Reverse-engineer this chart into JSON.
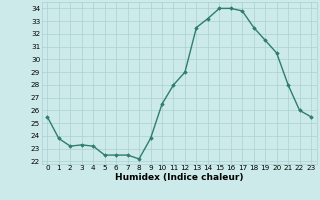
{
  "x": [
    0,
    1,
    2,
    3,
    4,
    5,
    6,
    7,
    8,
    9,
    10,
    11,
    12,
    13,
    14,
    15,
    16,
    17,
    18,
    19,
    20,
    21,
    22,
    23
  ],
  "y": [
    25.5,
    23.8,
    23.2,
    23.3,
    23.2,
    22.5,
    22.5,
    22.5,
    22.2,
    23.8,
    26.5,
    28.0,
    29.0,
    32.5,
    33.2,
    34.0,
    34.0,
    33.8,
    32.5,
    31.5,
    30.5,
    28.0,
    26.0,
    25.5
  ],
  "xlabel": "Humidex (Indice chaleur)",
  "ylabel": "",
  "ylim": [
    21.8,
    34.5
  ],
  "yticks": [
    22,
    23,
    24,
    25,
    26,
    27,
    28,
    29,
    30,
    31,
    32,
    33,
    34
  ],
  "xlim": [
    -0.5,
    23.5
  ],
  "xticks": [
    0,
    1,
    2,
    3,
    4,
    5,
    6,
    7,
    8,
    9,
    10,
    11,
    12,
    13,
    14,
    15,
    16,
    17,
    18,
    19,
    20,
    21,
    22,
    23
  ],
  "line_color": "#2e7d6e",
  "marker": "D",
  "marker_size": 1.8,
  "line_width": 1.0,
  "bg_color": "#cdeaea",
  "grid_color": "#aacfcf",
  "tick_fontsize": 5.2,
  "xlabel_fontsize": 6.5
}
